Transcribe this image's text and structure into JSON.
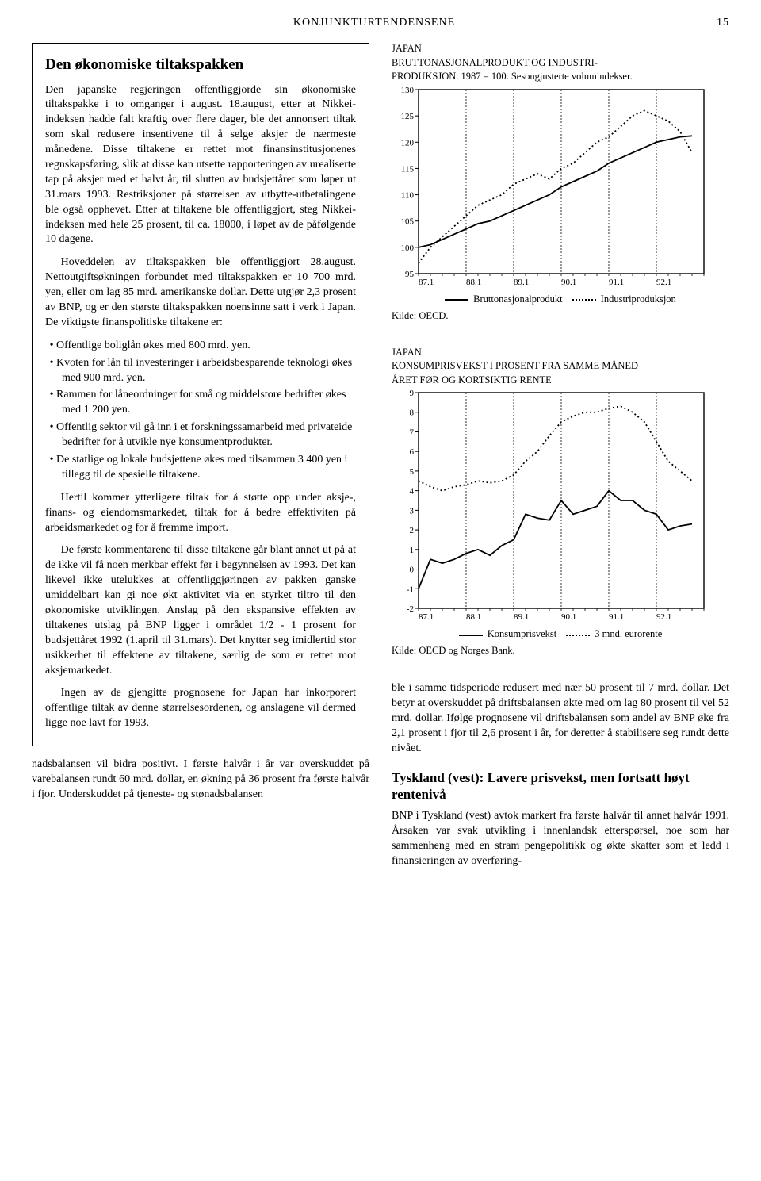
{
  "header": {
    "title": "KONJUNKTURTENDENSENE",
    "page_no": "15"
  },
  "left": {
    "box_title": "Den økonomiske tiltakspakken",
    "p1": "Den japanske regjeringen offentliggjorde sin økonomiske tiltakspakke i to omganger i august. 18.august, etter at Nikkei-indeksen hadde falt kraftig over flere dager, ble det annonsert tiltak som skal redusere insentivene til å selge aksjer de nærmeste månedene. Disse tiltakene er rettet mot finansinstitusjonenes regnskapsføring, slik at disse kan utsette rapporteringen av urealiserte tap på aksjer med et halvt år, til slutten av budsjettåret som løper ut 31.mars 1993. Restriksjoner på størrelsen av utbytte-utbetalingene ble også opphevet. Etter at tiltakene ble offentliggjort, steg Nikkei-indeksen med hele 25 prosent, til ca. 18000, i løpet av de påfølgende 10 dagene.",
    "p2": "Hoveddelen av tiltakspakken ble offentliggjort 28.august. Nettoutgiftsøkningen forbundet med tiltakspakken er 10 700 mrd. yen, eller om lag 85 mrd. amerikanske dollar. Dette utgjør 2,3 prosent av BNP, og er den største tiltakspakken noensinne satt i verk i Japan. De viktigste finanspolitiske tiltakene er:",
    "bullets": [
      "Offentlige boliglån økes med 800 mrd. yen.",
      "Kvoten for lån til investeringer i arbeidsbesparende teknologi økes med 900 mrd. yen.",
      "Rammen for låneordninger for små og middelstore bedrifter økes med 1 200 yen.",
      "Offentlig sektor vil gå inn i et forskningssamarbeid med privateide bedrifter for å utvikle nye konsumentprodukter.",
      "De statlige og lokale budsjettene økes med tilsammen 3 400 yen i tillegg til de spesielle tiltakene."
    ],
    "p3": "Hertil kommer ytterligere tiltak for å støtte opp under aksje-, finans- og eiendomsmarkedet, tiltak for å bedre effektiviten på arbeidsmarkedet og for å fremme import.",
    "p4": "De første kommentarene til disse tiltakene går blant annet ut på at de ikke vil få noen merkbar effekt før i begynnelsen av 1993. Det kan likevel ikke utelukkes at offentliggjøringen av pakken ganske umiddelbart kan gi noe økt aktivitet via en styrket tiltro til den økonomiske utviklingen. Anslag på den ekspansive effekten av tiltakenes utslag på BNP ligger i området 1/2 - 1 prosent for budsjettåret 1992 (1.april til 31.mars). Det knytter seg imidlertid stor usikkerhet til effektene av tiltakene, særlig de som er rettet mot aksjemarkedet.",
    "p5": "Ingen av de gjengitte prognosene for Japan har inkorporert offentlige tiltak av denne størrelsesordenen, og anslagene vil dermed ligge noe lavt for 1993.",
    "below": "nadsbalansen vil bidra positivt. I første halvår i år var overskuddet på varebalansen rundt 60 mrd. dollar, en økning på 36 prosent fra første halvår i fjor. Underskuddet på tjeneste- og stønadsbalansen"
  },
  "chart1": {
    "type": "line",
    "title_lines": [
      "JAPAN",
      "BRUTTONASJONALPRODUKT OG INDUSTRI-",
      "PRODUKSJON. 1987 = 100. Sesongjusterte volumindekser."
    ],
    "x_ticks": [
      "87.1",
      "88.1",
      "89.1",
      "90.1",
      "91.1",
      "92.1"
    ],
    "x_positions": [
      0,
      4,
      8,
      12,
      16,
      20
    ],
    "x_max": 24,
    "y_ticks": [
      95,
      100,
      105,
      110,
      115,
      120,
      125,
      130
    ],
    "ylim": [
      95,
      130
    ],
    "grid_x": [
      4,
      8,
      12,
      16,
      20
    ],
    "series": [
      {
        "name": "Bruttonasjonalprodukt",
        "style": "solid",
        "points": [
          [
            0,
            100
          ],
          [
            1,
            100.5
          ],
          [
            2,
            101.5
          ],
          [
            3,
            102.5
          ],
          [
            4,
            103.5
          ],
          [
            5,
            104.5
          ],
          [
            6,
            105
          ],
          [
            7,
            106
          ],
          [
            8,
            107
          ],
          [
            9,
            108
          ],
          [
            10,
            109
          ],
          [
            11,
            110
          ],
          [
            12,
            111.5
          ],
          [
            13,
            112.5
          ],
          [
            14,
            113.5
          ],
          [
            15,
            114.5
          ],
          [
            16,
            116
          ],
          [
            17,
            117
          ],
          [
            18,
            118
          ],
          [
            19,
            119
          ],
          [
            20,
            120
          ],
          [
            21,
            120.5
          ],
          [
            22,
            121
          ],
          [
            23,
            121.2
          ]
        ]
      },
      {
        "name": "Industriproduksjon",
        "style": "dotted",
        "points": [
          [
            0,
            97
          ],
          [
            1,
            100
          ],
          [
            2,
            102
          ],
          [
            3,
            104
          ],
          [
            4,
            106
          ],
          [
            5,
            108
          ],
          [
            6,
            109
          ],
          [
            7,
            110
          ],
          [
            8,
            112
          ],
          [
            9,
            113
          ],
          [
            10,
            114
          ],
          [
            11,
            113
          ],
          [
            12,
            115
          ],
          [
            13,
            116
          ],
          [
            14,
            118
          ],
          [
            15,
            120
          ],
          [
            16,
            121
          ],
          [
            17,
            123
          ],
          [
            18,
            125
          ],
          [
            19,
            126
          ],
          [
            20,
            125
          ],
          [
            21,
            124
          ],
          [
            22,
            122
          ],
          [
            23,
            118
          ]
        ]
      }
    ],
    "legend": [
      {
        "style": "solid",
        "label": "Bruttonasjonalprodukt"
      },
      {
        "style": "dotted",
        "label": "Industriproduksjon"
      }
    ],
    "source": "Kilde: OECD.",
    "colors": {
      "line": "#000000",
      "grid": "#000000",
      "bg": "#ffffff"
    },
    "line_width": 1.8,
    "font_size": 11
  },
  "chart2": {
    "type": "line",
    "title_lines": [
      "JAPAN",
      "KONSUMPRISVEKST I PROSENT FRA SAMME MÅNED",
      "ÅRET FØR OG KORTSIKTIG RENTE"
    ],
    "x_ticks": [
      "87.1",
      "88.1",
      "89.1",
      "90.1",
      "91.1",
      "92.1"
    ],
    "x_positions": [
      0,
      4,
      8,
      12,
      16,
      20
    ],
    "x_max": 24,
    "y_ticks": [
      -2,
      -1,
      0,
      1,
      2,
      3,
      4,
      5,
      6,
      7,
      8,
      9
    ],
    "ylim": [
      -2,
      9
    ],
    "grid_x": [
      4,
      8,
      12,
      16,
      20
    ],
    "series": [
      {
        "name": "Konsumprisvekst",
        "style": "solid",
        "points": [
          [
            0,
            -1.0
          ],
          [
            1,
            0.5
          ],
          [
            2,
            0.3
          ],
          [
            3,
            0.5
          ],
          [
            4,
            0.8
          ],
          [
            5,
            1.0
          ],
          [
            6,
            0.7
          ],
          [
            7,
            1.2
          ],
          [
            8,
            1.5
          ],
          [
            9,
            2.8
          ],
          [
            10,
            2.6
          ],
          [
            11,
            2.5
          ],
          [
            12,
            3.5
          ],
          [
            13,
            2.8
          ],
          [
            14,
            3.0
          ],
          [
            15,
            3.2
          ],
          [
            16,
            4.0
          ],
          [
            17,
            3.5
          ],
          [
            18,
            3.5
          ],
          [
            19,
            3.0
          ],
          [
            20,
            2.8
          ],
          [
            21,
            2.0
          ],
          [
            22,
            2.2
          ],
          [
            23,
            2.3
          ]
        ]
      },
      {
        "name": "3 mnd. eurorente",
        "style": "dotted",
        "points": [
          [
            0,
            4.5
          ],
          [
            1,
            4.2
          ],
          [
            2,
            4.0
          ],
          [
            3,
            4.2
          ],
          [
            4,
            4.3
          ],
          [
            5,
            4.5
          ],
          [
            6,
            4.4
          ],
          [
            7,
            4.5
          ],
          [
            8,
            4.8
          ],
          [
            9,
            5.5
          ],
          [
            10,
            6.0
          ],
          [
            11,
            6.8
          ],
          [
            12,
            7.5
          ],
          [
            13,
            7.8
          ],
          [
            14,
            8.0
          ],
          [
            15,
            8.0
          ],
          [
            16,
            8.2
          ],
          [
            17,
            8.3
          ],
          [
            18,
            8.0
          ],
          [
            19,
            7.5
          ],
          [
            20,
            6.5
          ],
          [
            21,
            5.5
          ],
          [
            22,
            5.0
          ],
          [
            23,
            4.5
          ]
        ]
      }
    ],
    "legend": [
      {
        "style": "solid",
        "label": "Konsumprisvekst"
      },
      {
        "style": "dotted",
        "label": "3 mnd. eurorente"
      }
    ],
    "source": "Kilde: OECD og Norges Bank.",
    "colors": {
      "line": "#000000",
      "grid": "#000000",
      "bg": "#ffffff"
    },
    "line_width": 1.8,
    "font_size": 11
  },
  "right_text": {
    "p1": "ble i samme tidsperiode redusert med nær 50 prosent til 7 mrd. dollar. Det betyr at overskuddet på driftsbalansen økte med om lag 80 prosent til vel 52 mrd. dollar. Ifølge prognosene vil driftsbalansen som andel av BNP øke fra 2,1 prosent i fjor til 2,6 prosent i år, for deretter å stabilisere seg rundt dette nivået.",
    "subhead": "Tyskland (vest): Lavere prisvekst, men fortsatt høyt rentenivå",
    "p2": "BNP i Tyskland (vest) avtok markert fra første halvår til annet halvår 1991. Årsaken var svak utvikling i innenlandsk etterspørsel, noe som har sammenheng med en stram pengepolitikk og økte skatter som et ledd i finansieringen av overføring-"
  }
}
